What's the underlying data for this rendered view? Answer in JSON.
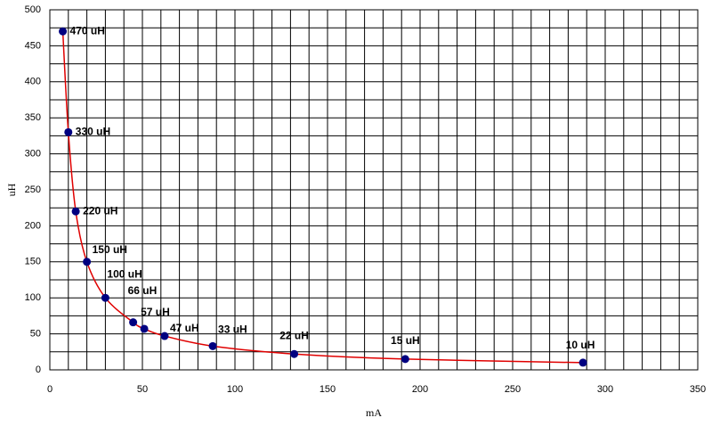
{
  "chart_data": {
    "type": "line",
    "x": [
      7,
      10,
      14,
      20,
      30,
      45,
      51,
      62,
      88,
      132,
      192,
      288
    ],
    "values": [
      470,
      330,
      220,
      150,
      100,
      66,
      57,
      47,
      33,
      22,
      15,
      10
    ],
    "value_labels": [
      "470 uH",
      "330 uH",
      "220 uH",
      "150 uH",
      "100 uH",
      "66 uH",
      "57 uH",
      "47 uH",
      "33 uH",
      "22 uH",
      "15 uH",
      "10 uH"
    ],
    "line_color": "#e00000",
    "marker_color": "#000080",
    "xlabel": "mA",
    "ylabel": "uH",
    "xlim": [
      0,
      350
    ],
    "ylim": [
      0,
      500
    ],
    "xticks": [
      0,
      50,
      100,
      150,
      200,
      250,
      300,
      350
    ],
    "yticks": [
      0,
      50,
      100,
      150,
      200,
      250,
      300,
      350,
      400,
      450,
      500
    ],
    "x_minor_ticks": [
      10,
      20,
      30,
      40,
      60,
      70,
      80,
      90,
      110,
      120,
      130,
      140,
      160,
      170,
      180,
      190,
      210,
      220,
      230,
      240,
      260,
      270,
      280,
      290,
      310,
      320,
      330,
      340
    ],
    "y_minor_ticks": [
      25,
      75,
      125,
      175,
      225,
      275,
      325,
      375,
      425,
      475
    ],
    "grid": true
  }
}
